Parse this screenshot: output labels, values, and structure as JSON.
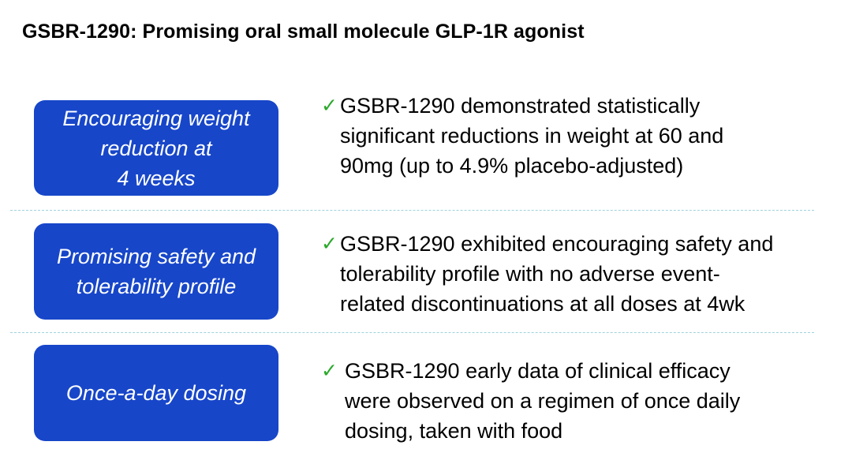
{
  "title": "GSBR-1290: Promising oral small molecule GLP-1R agonist",
  "colors": {
    "pill_background": "#1746c9",
    "check_mark": "#2aa82a",
    "divider": "#9fd3dd"
  },
  "rows": [
    {
      "label": "Encouraging weight\nreduction at\n4 weeks",
      "check_icon": "✓",
      "description": "GSBR-1290 demonstrated statistically\nsignificant reductions in weight at 60 and\n90mg (up to 4.9% placebo-adjusted)"
    },
    {
      "label": "Promising safety and\ntolerability profile",
      "check_icon": "✓",
      "description": "GSBR-1290 exhibited encouraging safety and\ntolerability profile with no adverse event-\nrelated discontinuations at all doses at 4wk"
    },
    {
      "label": "Once-a-day dosing",
      "check_icon": "✓",
      "description": "GSBR-1290 early data of clinical efficacy\nwere observed on a regimen of once daily\ndosing, taken with food"
    }
  ]
}
